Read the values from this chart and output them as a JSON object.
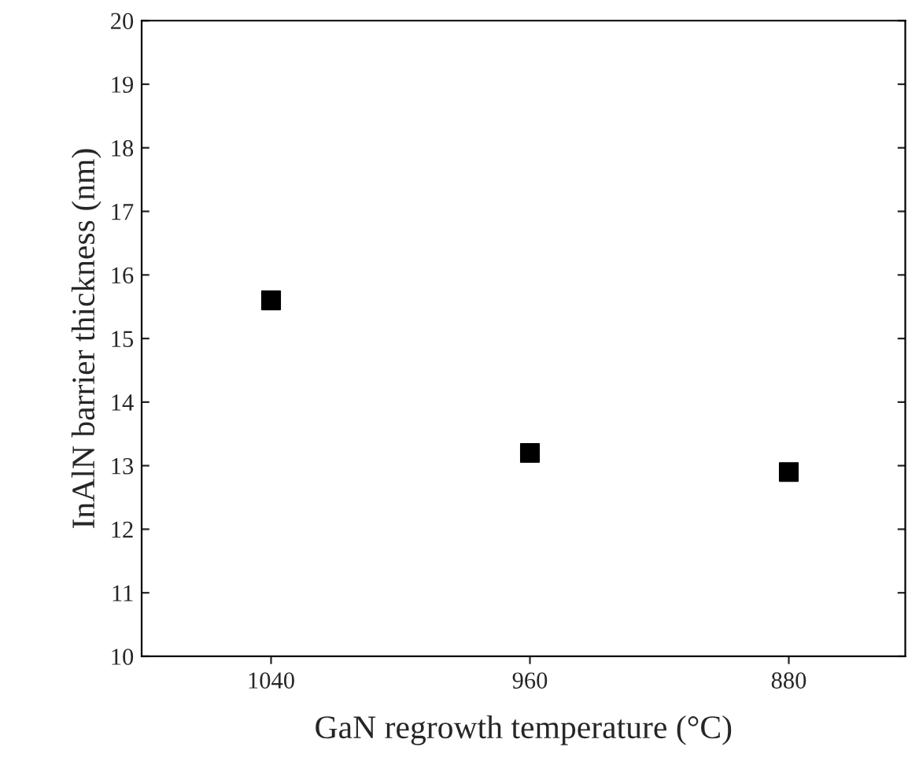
{
  "chart_data": {
    "type": "scatter",
    "xlabel": "GaN regrowth temperature (°C)",
    "ylabel": "InAlN barrier thickness (nm)",
    "x": [
      1040,
      960,
      880
    ],
    "values": [
      15.6,
      13.2,
      12.9
    ],
    "color": "#000000",
    "marker": "square",
    "xlim": [
      1080,
      844
    ],
    "xticks": [
      1040,
      960,
      880
    ],
    "ylim": [
      10,
      20
    ],
    "yticks": [
      10,
      11,
      12,
      13,
      14,
      15,
      16,
      17,
      18,
      19,
      20
    ],
    "grid": false,
    "legend": false
  }
}
